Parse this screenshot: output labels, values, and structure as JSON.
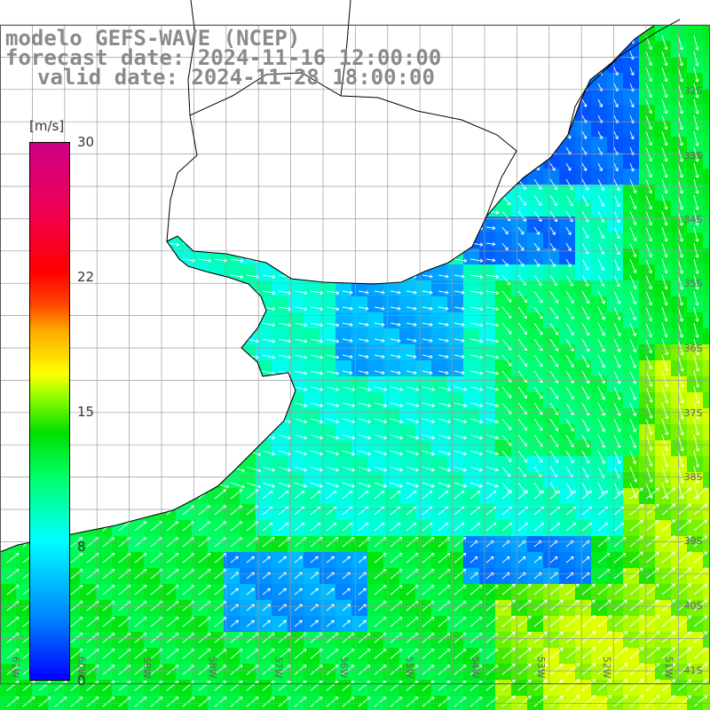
{
  "title": {
    "line1": "modelo GEFS-WAVE (NCEP)",
    "line2": "forecast date: 2024-11-16 12:00:00",
    "line3": "valid date: 2024-11-28 18:00:00"
  },
  "colorbar": {
    "unit": "[m/s]",
    "ticks": [
      "30",
      "22",
      "15",
      "8",
      "0"
    ],
    "tick_values": [
      30,
      22,
      15,
      8,
      0
    ],
    "colors": {
      "low": "#0000ff",
      "mid_low": "#00ffff",
      "mid": "#00e000",
      "mid_high": "#ffff00",
      "high": "#ff0000",
      "top": "#cc0088"
    }
  },
  "map": {
    "latitude_labels": [
      "32S",
      "33S",
      "34S",
      "35S",
      "36S",
      "37S",
      "38S",
      "39S",
      "40S",
      "41S"
    ],
    "longitude_labels": [
      "61W",
      "60W",
      "59W",
      "58W",
      "57W",
      "56W",
      "55W",
      "54W",
      "53W",
      "52W",
      "51W"
    ],
    "land_color": "#ffffff",
    "grid_color": "#9a9a9a",
    "arrow_color": "#ffffff"
  }
}
